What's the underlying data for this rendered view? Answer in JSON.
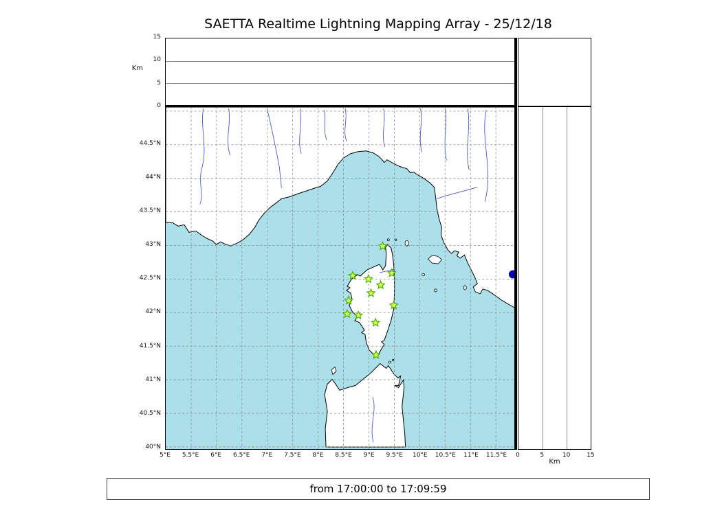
{
  "title": "SAETTA Realtime Lightning Mapping Array - 25/12/18",
  "status_bar": "from 17:00:00 to 17:09:59",
  "top_panel": {
    "axis_label": "Km",
    "ticks": [
      "15",
      "10",
      "5",
      "0"
    ]
  },
  "right_panel": {
    "axis_label": "Km",
    "ticks": [
      "0",
      "5",
      "10",
      "15"
    ]
  },
  "map_panel": {
    "lat_ticks": [
      "44.5°N",
      "44°N",
      "43.5°N",
      "43°N",
      "42.5°N",
      "42°N",
      "41.5°N",
      "41°N",
      "40.5°N",
      "40°N"
    ],
    "lon_ticks": [
      "5°E",
      "5.5°E",
      "6°E",
      "6.5°E",
      "7°E",
      "7.5°E",
      "8°E",
      "8.5°E",
      "9°E",
      "9.5°E",
      "10°E",
      "10.5°E",
      "11°E",
      "11.5°E"
    ]
  },
  "chart_data": {
    "type": "scatter",
    "title": "SAETTA Realtime Lightning Mapping Array - 25/12/18",
    "date": "25/12/18",
    "time_window": {
      "from": "17:00:00",
      "to": "17:09:59"
    },
    "map": {
      "lon_range": [
        5.0,
        11.9
      ],
      "lat_range": [
        40.0,
        45.06
      ],
      "grid_step_deg": 0.5,
      "grid": "dashed"
    },
    "altitude_axis": {
      "label": "Km",
      "range": [
        0,
        15
      ],
      "ticks": [
        0,
        5,
        10,
        15
      ]
    },
    "lat_tick_values": [
      44.5,
      44.0,
      43.5,
      43.0,
      42.5,
      42.0,
      41.5,
      41.0,
      40.5,
      40.0
    ],
    "lon_tick_values": [
      5.0,
      5.5,
      6.0,
      6.5,
      7.0,
      7.5,
      8.0,
      8.5,
      9.0,
      9.5,
      10.0,
      10.5,
      11.0,
      11.5
    ],
    "stations": [
      {
        "lon": 9.28,
        "lat": 42.99
      },
      {
        "lon": 8.69,
        "lat": 42.55
      },
      {
        "lon": 9.0,
        "lat": 42.5
      },
      {
        "lon": 9.46,
        "lat": 42.59
      },
      {
        "lon": 9.24,
        "lat": 42.41
      },
      {
        "lon": 9.05,
        "lat": 42.29
      },
      {
        "lon": 8.61,
        "lat": 42.18
      },
      {
        "lon": 9.5,
        "lat": 42.11
      },
      {
        "lon": 8.58,
        "lat": 41.98
      },
      {
        "lon": 8.8,
        "lat": 41.96
      },
      {
        "lon": 9.14,
        "lat": 41.85
      },
      {
        "lon": 9.15,
        "lat": 41.37
      }
    ],
    "detections": [
      {
        "lon": 11.85,
        "lat": 42.57,
        "alt_km": 0
      }
    ]
  },
  "colors": {
    "sea": "#abdfe9",
    "land": "#ffffff",
    "coast": "#000000",
    "river": "#4a5ac8",
    "grid": "#8a8a8a",
    "station_fill": "#d9ff66",
    "station_edge": "#4caf00",
    "detection": "#0000b8"
  }
}
